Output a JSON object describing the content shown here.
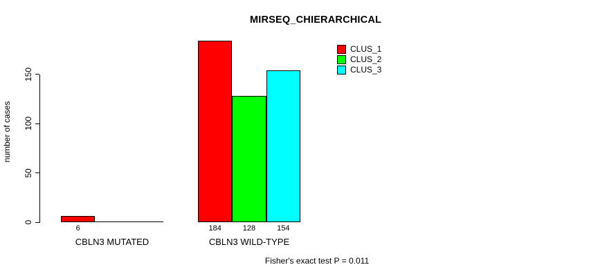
{
  "title": "MIRSEQ_CHIERARCHICAL",
  "footnote": "Fisher's exact test P = 0.011",
  "chart_data": {
    "type": "bar",
    "title": "MIRSEQ_CHIERARCHICAL",
    "xlabel": "",
    "ylabel": "number of cases",
    "ylim": [
      0,
      150
    ],
    "yticks": [
      0,
      50,
      100,
      150
    ],
    "grid": false,
    "legend_position": "top-right",
    "categories": [
      "CBLN3 MUTATED",
      "CBLN3 WILD-TYPE"
    ],
    "series": [
      {
        "name": "CLUS_1",
        "color": "#FF0000",
        "values": [
          6,
          184
        ]
      },
      {
        "name": "CLUS_2",
        "color": "#00FF00",
        "values": [
          0,
          128
        ]
      },
      {
        "name": "CLUS_3",
        "color": "#00FFFF",
        "values": [
          0,
          154
        ]
      }
    ],
    "bar_value_labels": [
      [
        "6",
        "",
        ""
      ],
      [
        "184",
        "128",
        "154"
      ]
    ],
    "footnote": "Fisher's exact test P = 0.011"
  }
}
